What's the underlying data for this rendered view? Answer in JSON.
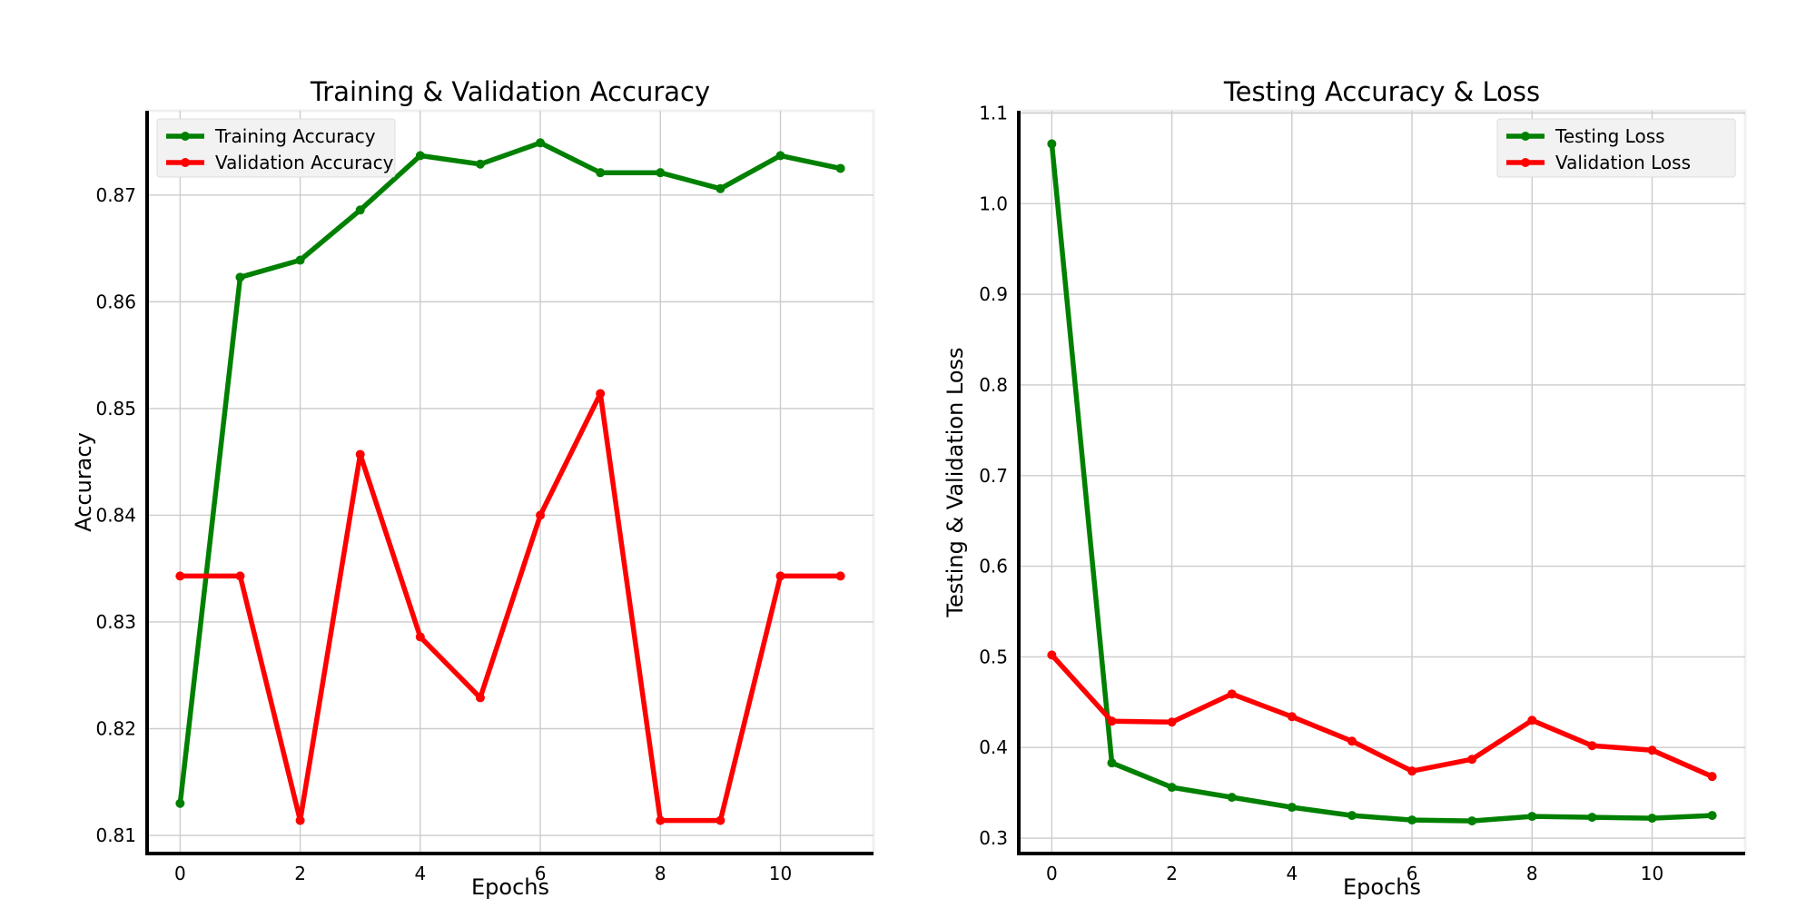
{
  "chart_data": [
    {
      "type": "line",
      "title": "Training & Validation Accuracy",
      "xlabel": "Epochs",
      "ylabel": "Accuracy",
      "x": [
        0,
        1,
        2,
        3,
        4,
        5,
        6,
        7,
        8,
        9,
        10,
        11
      ],
      "xlim": [
        -0.55,
        11.55
      ],
      "ylim": [
        0.8083,
        0.8779
      ],
      "xticks": [
        0,
        2,
        4,
        6,
        8,
        10
      ],
      "yticks": [
        0.81,
        0.82,
        0.83,
        0.84,
        0.85,
        0.86,
        0.87
      ],
      "grid": true,
      "legend": "upper-left",
      "series": [
        {
          "name": "Training Accuracy",
          "color": "#008000",
          "values": [
            0.813,
            0.8623,
            0.8639,
            0.8686,
            0.8737,
            0.8729,
            0.8749,
            0.8721,
            0.8721,
            0.8706,
            0.8737,
            0.8725
          ]
        },
        {
          "name": "Validation Accuracy",
          "color": "#ff0000",
          "values": [
            0.8343,
            0.8343,
            0.8114,
            0.8457,
            0.8286,
            0.8229,
            0.84,
            0.8514,
            0.8114,
            0.8114,
            0.8343,
            0.8343
          ]
        }
      ]
    },
    {
      "type": "line",
      "title": "Testing Accuracy & Loss",
      "xlabel": "Epochs",
      "ylabel": "Testing & Validation Loss",
      "x": [
        0,
        1,
        2,
        3,
        4,
        5,
        6,
        7,
        8,
        9,
        10,
        11
      ],
      "xlim": [
        -0.55,
        11.55
      ],
      "ylim": [
        0.283,
        1.1025
      ],
      "xticks": [
        0,
        2,
        4,
        6,
        8,
        10
      ],
      "yticks": [
        0.3,
        0.4,
        0.5,
        0.6,
        0.7,
        0.8,
        0.9,
        1.0,
        1.1
      ],
      "grid": true,
      "legend": "upper-right",
      "series": [
        {
          "name": "Testing Loss",
          "color": "#008000",
          "values": [
            1.066,
            0.383,
            0.356,
            0.345,
            0.334,
            0.325,
            0.32,
            0.319,
            0.324,
            0.323,
            0.322,
            0.325
          ]
        },
        {
          "name": "Validation Loss",
          "color": "#ff0000",
          "values": [
            0.502,
            0.429,
            0.428,
            0.459,
            0.434,
            0.407,
            0.374,
            0.387,
            0.43,
            0.402,
            0.397,
            0.368
          ]
        }
      ]
    }
  ]
}
